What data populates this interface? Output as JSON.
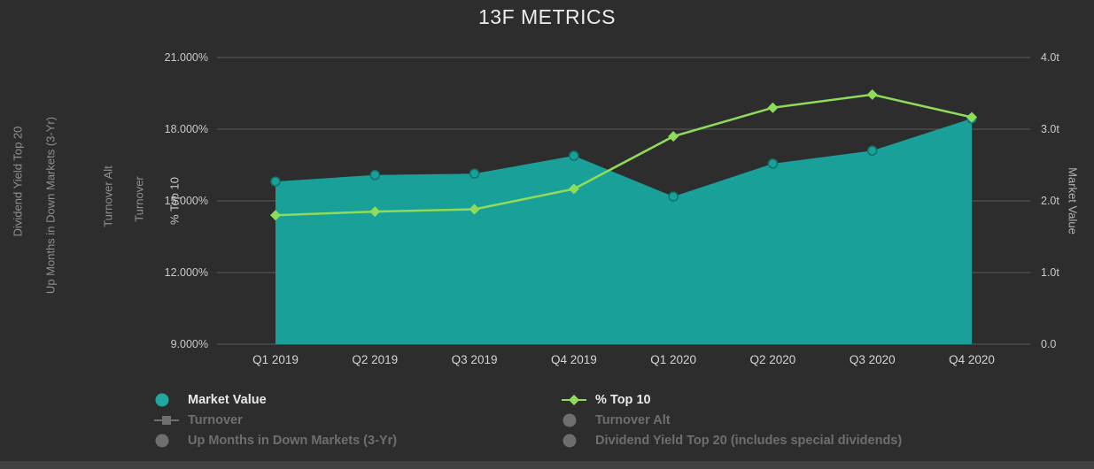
{
  "title": "13F METRICS",
  "axis_titles": {
    "hidden": [
      "Dividend Yield Top 20",
      "Up Months in Down Markets (3-Yr)",
      "Turnover Alt",
      "Turnover"
    ],
    "left": "% Top 10",
    "right": "Market Value"
  },
  "chart_data": {
    "type": "combo",
    "title": "13F METRICS",
    "categories": [
      "Q1 2019",
      "Q2 2019",
      "Q3 2019",
      "Q4 2019",
      "Q1 2020",
      "Q2 2020",
      "Q3 2020",
      "Q4 2020"
    ],
    "series": [
      {
        "name": "Market Value",
        "type": "area",
        "axis": "right",
        "color": "#18a099",
        "marker": "circle",
        "marker_stroke": "#0e746d",
        "values": [
          2.27,
          2.36,
          2.38,
          2.63,
          2.06,
          2.52,
          2.7,
          3.15
        ]
      },
      {
        "name": "% Top 10",
        "type": "line",
        "axis": "left",
        "color": "#8edc5a",
        "marker": "diamond",
        "values": [
          14.4,
          14.55,
          14.65,
          15.5,
          17.7,
          18.9,
          19.45,
          18.5
        ]
      }
    ],
    "left_axis": {
      "label": "% Top 10",
      "min": 9,
      "max": 21,
      "tick_values": [
        21,
        18,
        15,
        12,
        9
      ],
      "ticks": [
        "21.000%",
        "18.000%",
        "15.000%",
        "12.000%",
        "9.000%"
      ]
    },
    "right_axis": {
      "label": "Market Value",
      "min": 0,
      "max": 4,
      "tick_values": [
        4,
        3,
        2,
        1,
        0
      ],
      "ticks": [
        "4.0t",
        "3.0t",
        "2.0t",
        "1.0t",
        "0.0"
      ]
    },
    "grid": true,
    "grid_color": "#5c5c5c",
    "background": "#2d2d2d",
    "legend_position": "bottom"
  },
  "legend": {
    "columns": [
      {
        "items": [
          {
            "label": "Market Value",
            "marker": "circle",
            "color": "#1fa89f",
            "active": true
          },
          {
            "label": "Turnover",
            "marker": "line-square",
            "color": "#6e6e6e",
            "active": false
          },
          {
            "label": "Up Months in Down Markets (3-Yr)",
            "marker": "circle",
            "color": "#6e6e6e",
            "active": false
          }
        ]
      },
      {
        "items": [
          {
            "label": "% Top 10",
            "marker": "line-diamond",
            "color": "#8edc5a",
            "active": true
          },
          {
            "label": "Turnover Alt",
            "marker": "circle",
            "color": "#6e6e6e",
            "active": false
          },
          {
            "label": "Dividend Yield Top 20 (includes special dividends)",
            "marker": "circle",
            "color": "#6e6e6e",
            "active": false
          }
        ]
      }
    ]
  }
}
